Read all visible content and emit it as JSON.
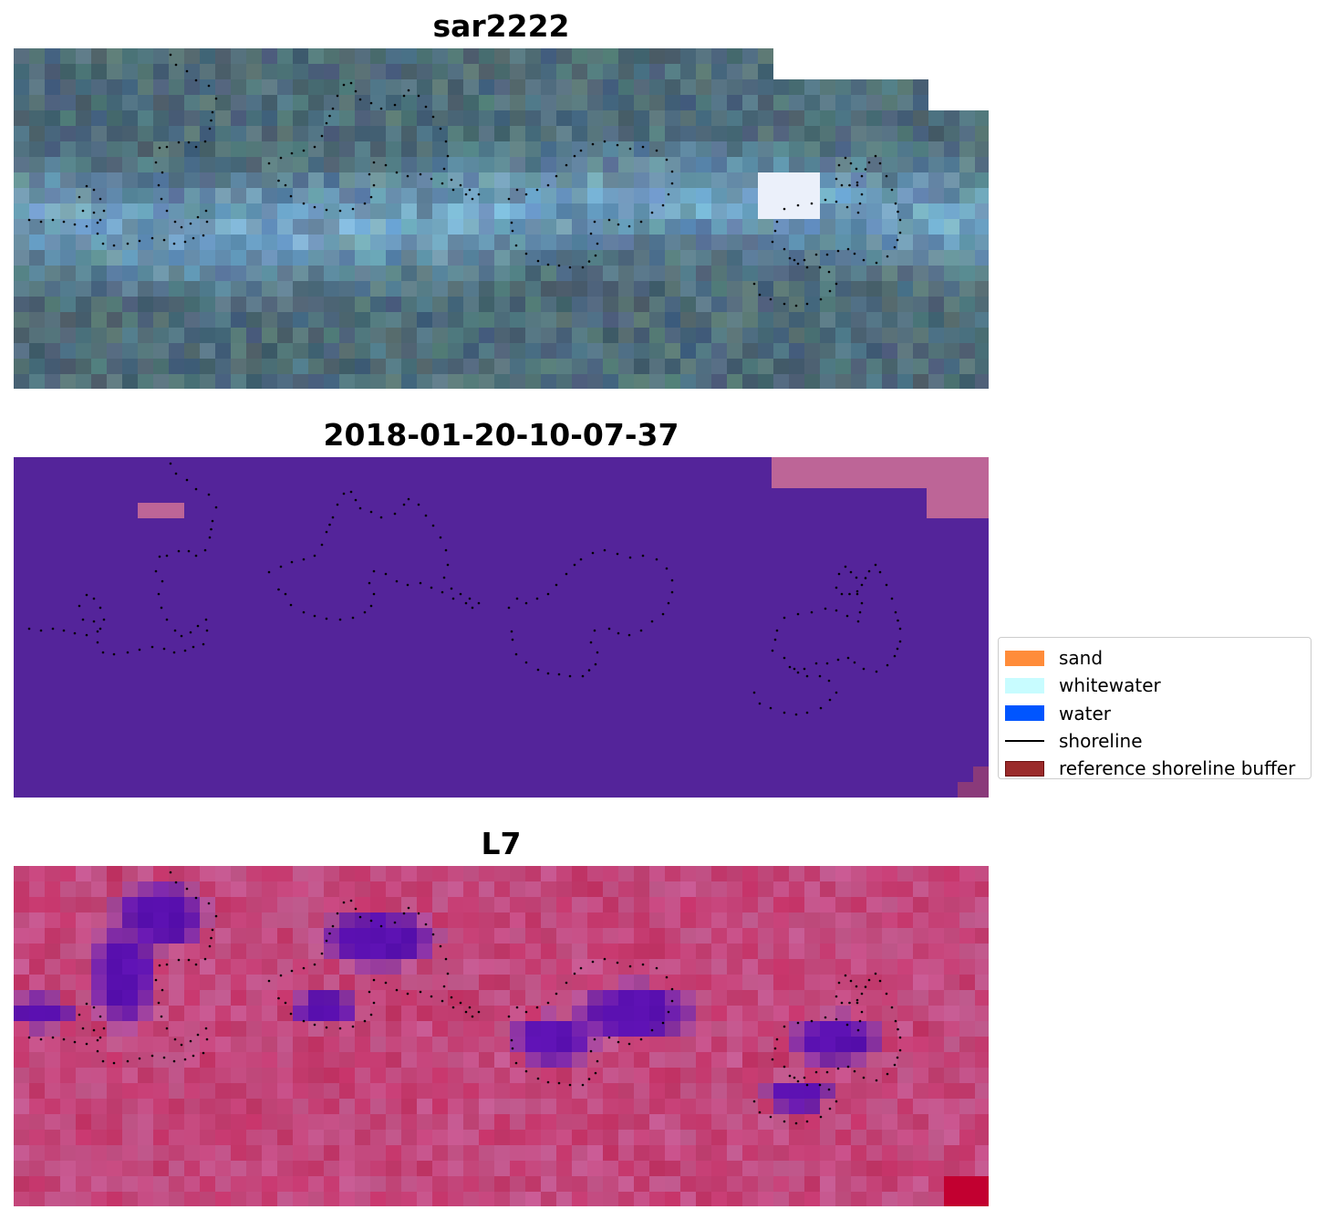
{
  "figure": {
    "panels": [
      {
        "title": "sar2222",
        "kind": "sar"
      },
      {
        "title": "2018-01-20-10-07-37",
        "kind": "classification"
      },
      {
        "title": "L7",
        "kind": "index"
      }
    ]
  },
  "legend": {
    "items": [
      {
        "label": "sand",
        "type": "patch",
        "color": "#ff8c3a"
      },
      {
        "label": "whitewater",
        "type": "patch",
        "color": "#c8fcff"
      },
      {
        "label": "water",
        "type": "patch",
        "color": "#0055ff"
      },
      {
        "label": "shoreline",
        "type": "line",
        "color": "#000000"
      },
      {
        "label": "reference shoreline buffer",
        "type": "patch",
        "color": "#9a2a2a"
      }
    ]
  },
  "colors": {
    "classification_background": "#54249a",
    "classification_buffer": "#bd6597",
    "index_base": "#c45c92",
    "index_low": "#5a10b0",
    "index_high": "#c20030",
    "sar_base": "#4f6d7a",
    "sar_bright": "#7fb8e0"
  },
  "shoreline": {
    "style": "dotted",
    "color": "#000000",
    "contours": [
      [
        [
          172,
          7
        ],
        [
          178,
          18
        ],
        [
          190,
          25
        ],
        [
          200,
          35
        ],
        [
          214,
          41
        ],
        [
          222,
          55
        ],
        [
          218,
          70
        ],
        [
          215,
          88
        ],
        [
          210,
          102
        ],
        [
          200,
          108
        ],
        [
          192,
          103
        ],
        [
          181,
          103
        ],
        [
          168,
          108
        ],
        [
          160,
          109
        ],
        [
          156,
          125
        ],
        [
          163,
          136
        ],
        [
          159,
          150
        ],
        [
          162,
          165
        ],
        [
          168,
          178
        ],
        [
          177,
          190
        ],
        [
          184,
          196
        ],
        [
          194,
          192
        ],
        [
          202,
          185
        ],
        [
          211,
          178
        ],
        [
          212,
          190
        ],
        [
          208,
          205
        ],
        [
          197,
          208
        ],
        [
          188,
          212
        ],
        [
          176,
          214
        ],
        [
          165,
          210
        ],
        [
          152,
          208
        ],
        [
          138,
          211
        ],
        [
          125,
          214
        ],
        [
          110,
          216
        ],
        [
          98,
          214
        ],
        [
          92,
          203
        ],
        [
          95,
          188
        ],
        [
          88,
          180
        ],
        [
          76,
          178
        ],
        [
          72,
          163
        ],
        [
          80,
          151
        ],
        [
          88,
          155
        ],
        [
          95,
          165
        ],
        [
          99,
          178
        ],
        [
          92,
          191
        ],
        [
          80,
          195
        ],
        [
          67,
          193
        ],
        [
          55,
          190
        ],
        [
          43,
          188
        ],
        [
          30,
          190
        ],
        [
          17,
          188
        ],
        [
          7,
          189
        ]
      ],
      [
        [
          280,
          126
        ],
        [
          293,
          120
        ],
        [
          305,
          115
        ],
        [
          318,
          112
        ],
        [
          330,
          108
        ],
        [
          338,
          96
        ],
        [
          343,
          82
        ],
        [
          350,
          66
        ],
        [
          355,
          52
        ],
        [
          362,
          40
        ],
        [
          370,
          38
        ],
        [
          380,
          56
        ],
        [
          392,
          60
        ],
        [
          403,
          66
        ],
        [
          418,
          62
        ],
        [
          428,
          52
        ],
        [
          433,
          46
        ],
        [
          444,
          52
        ],
        [
          452,
          64
        ],
        [
          460,
          75
        ],
        [
          468,
          88
        ],
        [
          474,
          102
        ],
        [
          476,
          118
        ],
        [
          472,
          132
        ],
        [
          480,
          144
        ],
        [
          490,
          150
        ],
        [
          500,
          155
        ],
        [
          510,
          160
        ],
        [
          503,
          165
        ],
        [
          496,
          160
        ],
        [
          482,
          155
        ],
        [
          470,
          148
        ],
        [
          458,
          143
        ],
        [
          446,
          138
        ],
        [
          432,
          140
        ],
        [
          420,
          136
        ],
        [
          408,
          128
        ],
        [
          395,
          125
        ],
        [
          390,
          138
        ],
        [
          395,
          150
        ],
        [
          392,
          163
        ],
        [
          385,
          170
        ],
        [
          372,
          176
        ],
        [
          358,
          178
        ],
        [
          343,
          177
        ],
        [
          330,
          174
        ],
        [
          318,
          170
        ],
        [
          304,
          162
        ],
        [
          298,
          150
        ],
        [
          283,
          140
        ]
      ],
      [
        [
          543,
          165
        ],
        [
          552,
          155
        ],
        [
          562,
          160
        ],
        [
          574,
          155
        ],
        [
          586,
          150
        ],
        [
          595,
          140
        ],
        [
          606,
          128
        ],
        [
          615,
          118
        ],
        [
          622,
          112
        ],
        [
          635,
          105
        ],
        [
          648,
          102
        ],
        [
          662,
          106
        ],
        [
          676,
          110
        ],
        [
          690,
          108
        ],
        [
          705,
          112
        ],
        [
          716,
          122
        ],
        [
          722,
          135
        ],
        [
          722,
          148
        ],
        [
          718,
          160
        ],
        [
          712,
          172
        ],
        [
          700,
          180
        ],
        [
          688,
          190
        ],
        [
          675,
          195
        ],
        [
          663,
          193
        ],
        [
          653,
          188
        ],
        [
          637,
          190
        ],
        [
          633,
          203
        ],
        [
          640,
          214
        ],
        [
          638,
          227
        ],
        [
          624,
          240
        ],
        [
          610,
          240
        ],
        [
          598,
          238
        ],
        [
          586,
          237
        ],
        [
          575,
          233
        ],
        [
          562,
          225
        ],
        [
          551,
          216
        ],
        [
          547,
          200
        ],
        [
          545,
          182
        ]
      ],
      [
        [
          812,
          258
        ],
        [
          818,
          270
        ],
        [
          830,
          275
        ],
        [
          845,
          280
        ],
        [
          858,
          282
        ],
        [
          870,
          280
        ],
        [
          885,
          275
        ],
        [
          895,
          266
        ],
        [
          902,
          258
        ],
        [
          894,
          245
        ],
        [
          884,
          240
        ],
        [
          870,
          240
        ],
        [
          860,
          236
        ],
        [
          851,
          230
        ],
        [
          845,
          220
        ],
        [
          832,
          212
        ],
        [
          835,
          200
        ],
        [
          837,
          190
        ],
        [
          845,
          176
        ],
        [
          860,
          172
        ],
        [
          875,
          170
        ],
        [
          890,
          166
        ],
        [
          902,
          168
        ],
        [
          914,
          174
        ],
        [
          926,
          180
        ],
        [
          930,
          160
        ],
        [
          925,
          147
        ],
        [
          924,
          132
        ],
        [
          912,
          120
        ],
        [
          905,
          128
        ],
        [
          902,
          143
        ],
        [
          908,
          150
        ],
        [
          925,
          150
        ],
        [
          930,
          140
        ],
        [
          938,
          125
        ],
        [
          945,
          118
        ],
        [
          950,
          126
        ],
        [
          957,
          140
        ],
        [
          963,
          155
        ],
        [
          967,
          170
        ],
        [
          972,
          188
        ],
        [
          972,
          202
        ],
        [
          966,
          218
        ],
        [
          958,
          228
        ],
        [
          946,
          235
        ],
        [
          932,
          232
        ],
        [
          922,
          225
        ],
        [
          915,
          220
        ],
        [
          904,
          222
        ],
        [
          892,
          226
        ],
        [
          880,
          226
        ],
        [
          867,
          232
        ],
        [
          856,
          232
        ],
        [
          848,
          228
        ]
      ]
    ]
  }
}
